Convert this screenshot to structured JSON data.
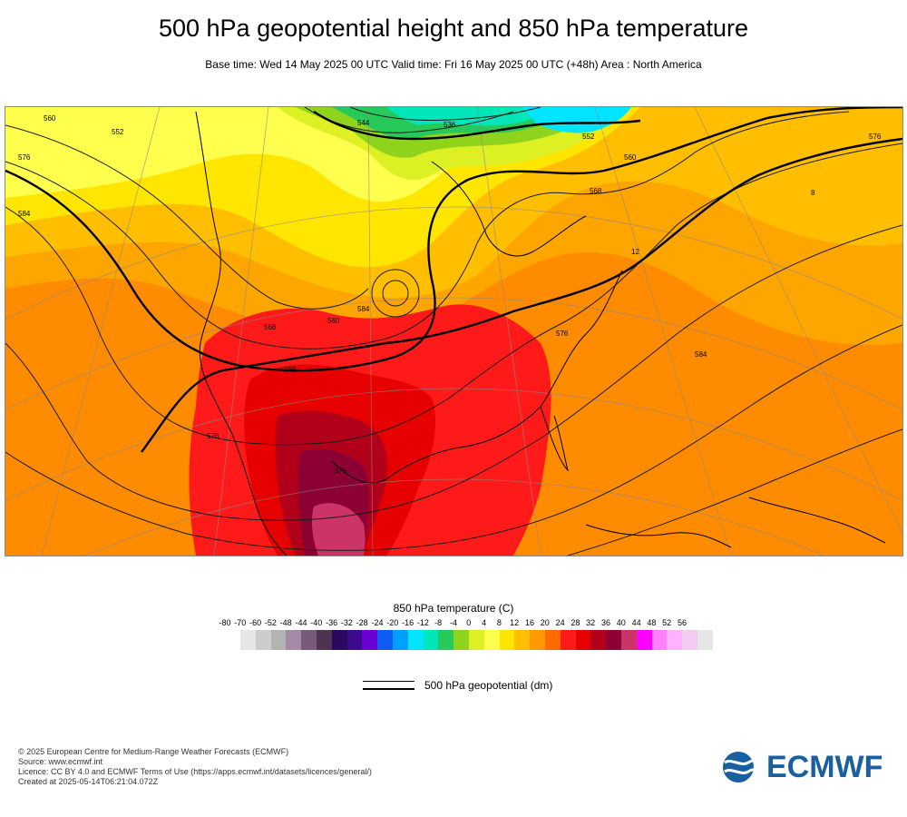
{
  "header": {
    "title": "500 hPa geopotential height and 850 hPa temperature",
    "subtitle": "Base time: Wed 14 May 2025 00 UTC Valid time: Fri 16 May 2025 00 UTC (+48h) Area : North America"
  },
  "map": {
    "contour_labels": [
      "560",
      "552",
      "576",
      "584",
      "544",
      "536",
      "552",
      "560",
      "568",
      "576",
      "584",
      "576",
      "560",
      "568",
      "576",
      "576",
      "584",
      "568",
      "12",
      "8"
    ]
  },
  "legend": {
    "title": "850 hPa temperature (C)",
    "ticks": [
      "-80",
      "-70",
      "-60",
      "-52",
      "-48",
      "-44",
      "-40",
      "-36",
      "-32",
      "-28",
      "-24",
      "-20",
      "-16",
      "-12",
      "-8",
      "-4",
      "0",
      "4",
      "8",
      "12",
      "16",
      "20",
      "24",
      "28",
      "32",
      "36",
      "40",
      "44",
      "48",
      "52",
      "56"
    ],
    "colors": [
      "#e6e6e6",
      "#cccccc",
      "#b3b3b3",
      "#a58aa5",
      "#7a5a7a",
      "#4f3355",
      "#2a0a5e",
      "#3c0a8c",
      "#6b00d6",
      "#0f5cf5",
      "#00a0ff",
      "#00e5ff",
      "#00e6b8",
      "#26c95a",
      "#8fd31c",
      "#dcf024",
      "#ffff4d",
      "#ffe600",
      "#ffbf00",
      "#ff9900",
      "#ff6a00",
      "#ff1a1a",
      "#e60000",
      "#b3001a",
      "#8c0033",
      "#cc3366",
      "#ff00ff",
      "#ff80ff",
      "#ffb3ff",
      "#f0cdf0",
      "#e6e6e6"
    ]
  },
  "contour_key": {
    "label": "500 hPa geopotential (dm)"
  },
  "footer": {
    "lines": [
      "© 2025 European Centre for Medium-Range Weather Forecasts (ECMWF)",
      "Source: www.ecmwf.int",
      "Licence: CC BY 4.0 and ECMWF Terms of Use (https://apps.ecmwf.int/datasets/licences/general/)",
      "Created at 2025-05-14T06:21:04.072Z"
    ]
  },
  "logo": {
    "text": "ECMWF",
    "color": "#1a5fa0"
  }
}
